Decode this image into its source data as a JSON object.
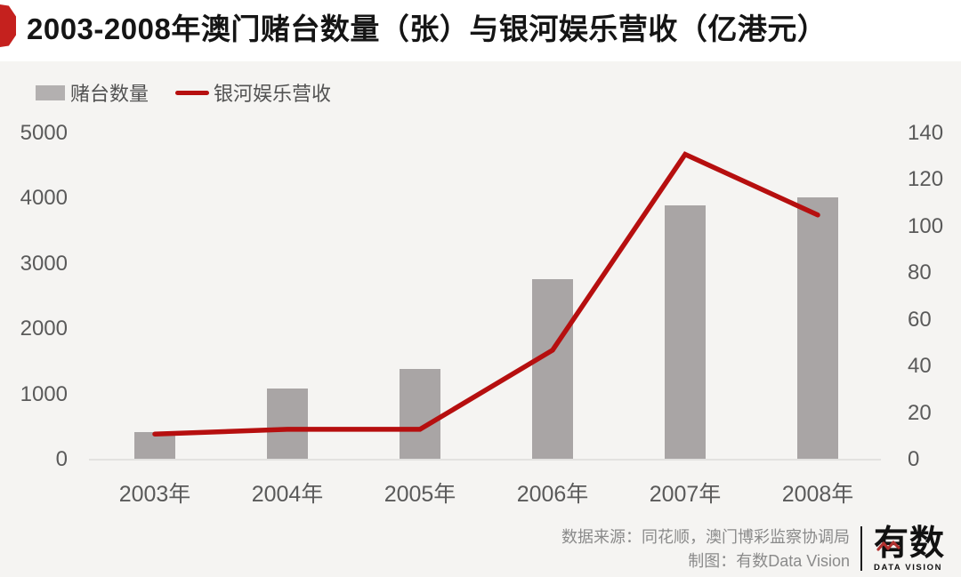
{
  "title": {
    "text": "2003-2008年澳门赌台数量（张）与银河娱乐营收（亿港元）",
    "badge_color": "#c5211e"
  },
  "legend": {
    "bar_label": "赌台数量",
    "line_label": "银河娱乐营收"
  },
  "chart_data": {
    "type": "bar+line",
    "categories": [
      "2003年",
      "2004年",
      "2005年",
      "2006年",
      "2007年",
      "2008年"
    ],
    "series": [
      {
        "name": "赌台数量",
        "type": "bar",
        "axis": "left",
        "color": "#a9a5a5",
        "values": [
          424,
          1092,
          1388,
          2762,
          3900,
          4017
        ]
      },
      {
        "name": "银河娱乐营收",
        "type": "line",
        "axis": "right",
        "color": "#b60f0f",
        "values": [
          11,
          13,
          13,
          47,
          131,
          105
        ]
      }
    ],
    "left_axis": {
      "min": 0,
      "max": 5000,
      "ticks": [
        0,
        1000,
        2000,
        3000,
        4000,
        5000
      ]
    },
    "right_axis": {
      "min": 0,
      "max": 140,
      "ticks": [
        0,
        20,
        40,
        60,
        80,
        100,
        120,
        140
      ]
    },
    "grid": false,
    "legend_position": "top-left",
    "title": "2003-2008年澳门赌台数量（张）与银河娱乐营收（亿港元）"
  },
  "footer": {
    "source_line": "数据来源：同花顺，澳门博彩监察协调局",
    "credit_line": "制图：有数Data Vision",
    "logo_main": "有数",
    "logo_sub": "DATA VISION",
    "logo_zigzag_icon": "line-chart-zigzag-icon"
  }
}
